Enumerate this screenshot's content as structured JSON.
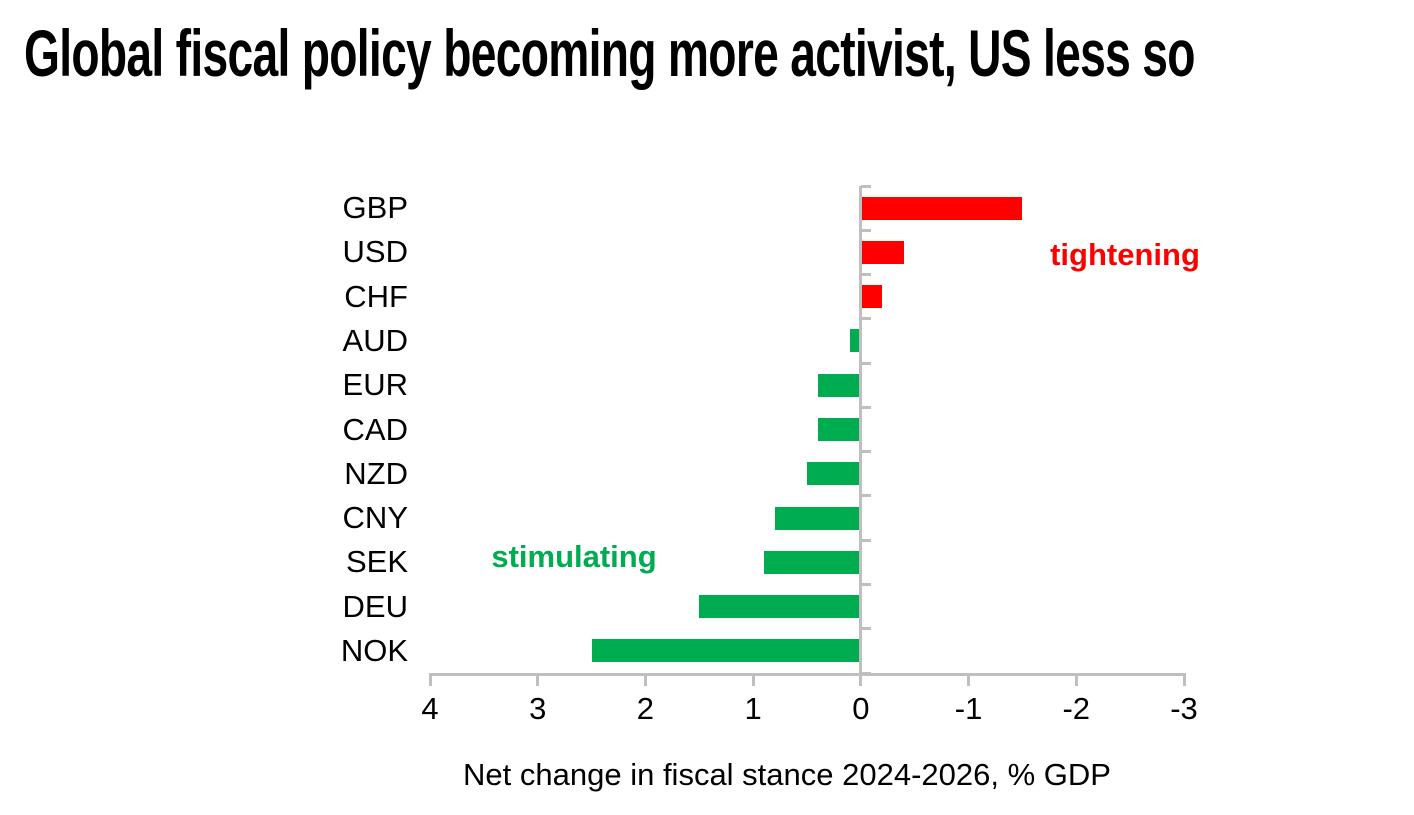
{
  "page": {
    "background": "#FFFFFF"
  },
  "chart_data": {
    "type": "bar",
    "orientation": "horizontal",
    "title": "Global fiscal policy becoming more activist, US less so",
    "xlabel": "Net change in fiscal stance 2024-2026, % GDP",
    "categories": [
      "GBP",
      "USD",
      "CHF",
      "AUD",
      "EUR",
      "CAD",
      "NZD",
      "CNY",
      "SEK",
      "DEU",
      "NOK"
    ],
    "values": [
      -1.5,
      -0.4,
      -0.2,
      0.1,
      0.4,
      0.4,
      0.5,
      0.8,
      0.9,
      1.5,
      2.5
    ],
    "x_ticks": [
      4,
      3,
      2,
      1,
      0,
      -1,
      -2,
      -3
    ],
    "xlim": [
      4,
      -3
    ],
    "x_axis_reversed": true,
    "grid": false,
    "legend": false,
    "units": "% GDP",
    "colors": {
      "positive": "#00AC50",
      "negative": "#FE0000",
      "axis": "#BFBFBF",
      "text": "#000000"
    },
    "annotations": [
      {
        "text": "tightening",
        "color": "#FE0000",
        "side": "negative"
      },
      {
        "text": "stimulating",
        "color": "#00AC50",
        "side": "positive"
      }
    ]
  }
}
